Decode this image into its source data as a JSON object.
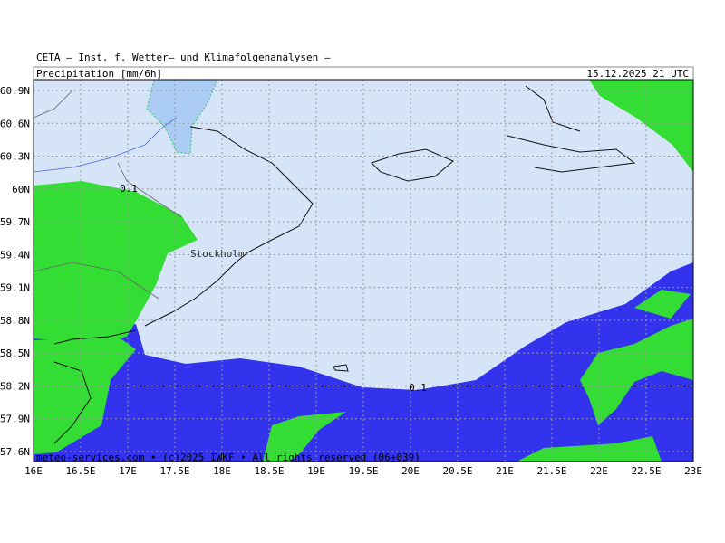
{
  "header": {
    "title": "CETA — Inst. f. Wetter— und Klimafolgenanalysen —",
    "variable": "Precipitation [mm/6h]",
    "valid_time": "15.12.2025 21 UTC"
  },
  "map": {
    "lat_labels": [
      "60.9N",
      "60.6N",
      "60.3N",
      "60N",
      "59.7N",
      "59.4N",
      "59.1N",
      "58.8N",
      "58.5N",
      "58.2N",
      "57.9N",
      "57.6N"
    ],
    "lon_labels": [
      "16E",
      "16.5E",
      "17E",
      "17.5E",
      "18E",
      "18.5E",
      "19E",
      "19.5E",
      "20E",
      "20.5E",
      "21E",
      "21.5E",
      "22E",
      "22.5E",
      "23E"
    ],
    "contour_labels": [
      "0.1",
      "0.1"
    ],
    "place_labels": [
      "Stockholm"
    ],
    "credit": "meteo-services.com • (c)2025 IWKF • All rights reserved (06+039)"
  }
}
